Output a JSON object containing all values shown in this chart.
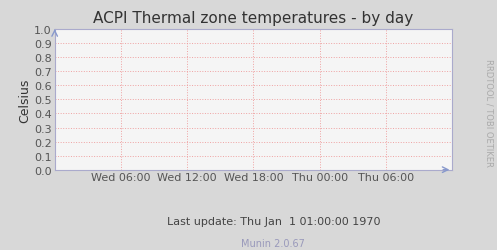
{
  "title": "ACPI Thermal zone temperatures - by day",
  "ylabel": "Celsius",
  "ylim": [
    0.0,
    1.0
  ],
  "yticks": [
    0.0,
    0.1,
    0.2,
    0.3,
    0.4,
    0.5,
    0.6,
    0.7,
    0.8,
    0.9,
    1.0
  ],
  "xtick_labels": [
    "Wed 06:00",
    "Wed 12:00",
    "Wed 18:00",
    "Thu 00:00",
    "Thu 06:00"
  ],
  "xtick_positions": [
    0.167,
    0.333,
    0.5,
    0.667,
    0.833
  ],
  "fig_bg_color": "#d8d8d8",
  "plot_bg_color": "#f5f5f5",
  "grid_color": "#ee9999",
  "grid_color2": "#ccccdd",
  "title_color": "#333333",
  "axis_color": "#333333",
  "tick_label_color": "#555555",
  "spine_color": "#aaaacc",
  "rrdtool_text": "RRDTOOL / TOBI OETIKER",
  "last_update_text": "Last update: Thu Jan  1 01:00:00 1970",
  "munin_text": "Munin 2.0.67",
  "munin_color": "#9999bb",
  "last_update_color": "#444444",
  "title_fontsize": 11,
  "ylabel_fontsize": 9,
  "tick_fontsize": 8,
  "rrdtool_fontsize": 6,
  "last_update_fontsize": 8,
  "munin_fontsize": 7,
  "arrow_color": "#8899cc"
}
